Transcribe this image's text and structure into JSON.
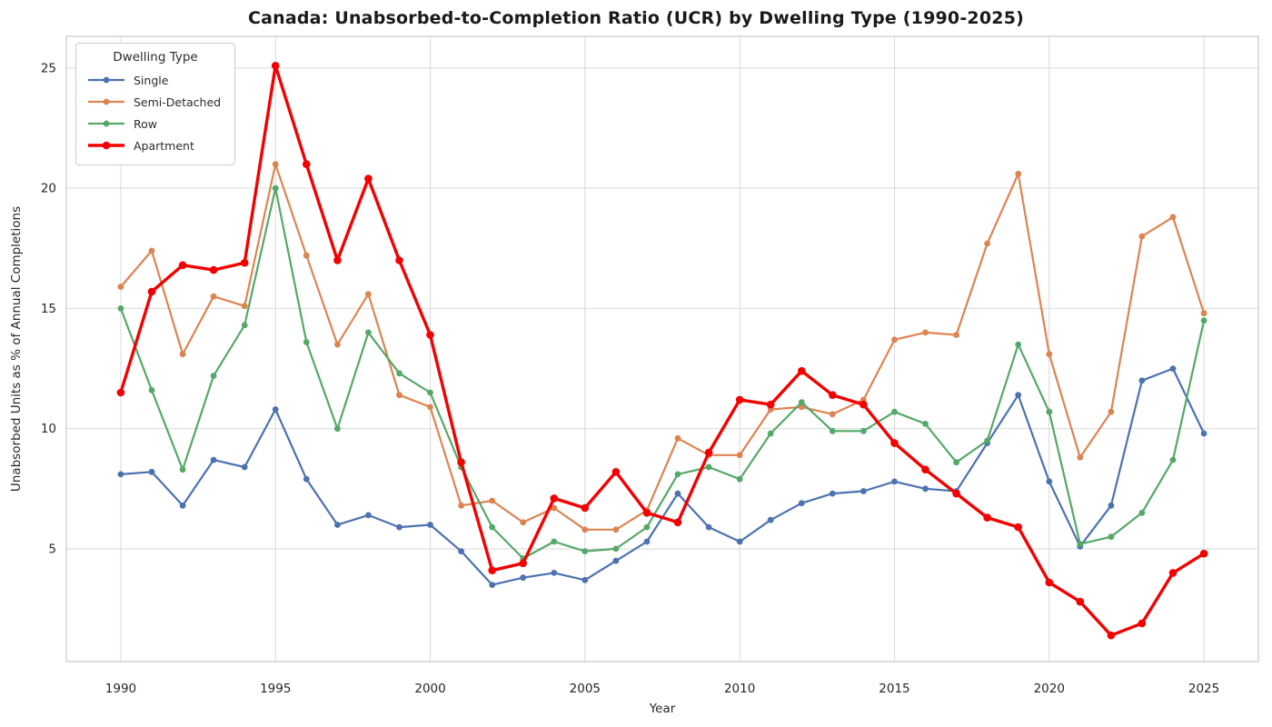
{
  "chart_data": {
    "type": "line",
    "title": "Canada: Unabsorbed-to-Completion Ratio (UCR) by Dwelling Type (1990-2025)",
    "xlabel": "Year",
    "ylabel": "Unabsorbed Units as % of Annual Completions",
    "legend_title": "Dwelling Type",
    "legend_position": "upper left",
    "grid": true,
    "background": "#ffffff",
    "gridline_color": "#d9d9d9",
    "spine_color": "#cccccc",
    "tick_label_color": "#262626",
    "xlim": [
      1988.24,
      2026.76
    ],
    "ylim": [
      0.31,
      26.32
    ],
    "xticks": [
      1990,
      1995,
      2000,
      2005,
      2010,
      2015,
      2020,
      2025
    ],
    "yticks": [
      5,
      10,
      15,
      20,
      25
    ],
    "x": [
      1990,
      1991,
      1992,
      1993,
      1994,
      1995,
      1996,
      1997,
      1998,
      1999,
      2000,
      2001,
      2002,
      2003,
      2004,
      2005,
      2006,
      2007,
      2008,
      2009,
      2010,
      2011,
      2012,
      2013,
      2014,
      2015,
      2016,
      2017,
      2018,
      2019,
      2020,
      2021,
      2022,
      2023,
      2024,
      2025
    ],
    "series": [
      {
        "name": "Single",
        "color": "#4c72b0",
        "linewidth": 2.2,
        "markersize": 3.4,
        "values": [
          8.1,
          8.2,
          6.8,
          8.7,
          8.4,
          10.8,
          7.9,
          6.0,
          6.4,
          5.9,
          6.0,
          4.9,
          3.5,
          3.8,
          4.0,
          3.7,
          4.5,
          5.3,
          7.3,
          5.9,
          5.3,
          6.2,
          6.9,
          7.3,
          7.4,
          7.8,
          7.5,
          7.4,
          9.4,
          11.4,
          7.8,
          5.1,
          6.8,
          12.0,
          12.5,
          9.8
        ]
      },
      {
        "name": "Semi-Detached",
        "color": "#dd8452",
        "linewidth": 2.2,
        "markersize": 3.4,
        "values": [
          15.9,
          17.4,
          13.1,
          15.5,
          15.1,
          21.0,
          17.2,
          13.5,
          15.6,
          11.4,
          10.9,
          6.8,
          7.0,
          6.1,
          6.7,
          5.8,
          5.8,
          6.6,
          9.6,
          8.9,
          8.9,
          10.8,
          10.9,
          10.6,
          11.2,
          13.7,
          14.0,
          13.9,
          17.7,
          20.6,
          13.1,
          8.8,
          10.7,
          18.0,
          18.8,
          14.8
        ]
      },
      {
        "name": "Row",
        "color": "#55a868",
        "linewidth": 2.2,
        "markersize": 3.4,
        "values": [
          15.0,
          11.6,
          8.3,
          12.2,
          14.3,
          20.0,
          13.6,
          10.0,
          14.0,
          12.3,
          11.5,
          8.4,
          5.9,
          4.6,
          5.3,
          4.9,
          5.0,
          5.9,
          8.1,
          8.4,
          7.9,
          9.8,
          11.1,
          9.9,
          9.9,
          10.7,
          10.2,
          8.6,
          9.5,
          13.5,
          10.7,
          5.2,
          5.5,
          6.5,
          8.7,
          14.5
        ]
      },
      {
        "name": "Apartment",
        "color": "#f40000",
        "linewidth": 3.4,
        "markersize": 4.3,
        "values": [
          11.5,
          15.7,
          16.8,
          16.6,
          16.9,
          25.1,
          21.0,
          17.0,
          20.4,
          17.0,
          13.9,
          8.6,
          4.1,
          4.4,
          7.1,
          6.7,
          8.2,
          6.5,
          6.1,
          9.0,
          11.2,
          11.0,
          12.4,
          11.4,
          11.0,
          9.4,
          8.3,
          7.3,
          6.3,
          5.9,
          3.6,
          2.8,
          1.4,
          1.9,
          4.0,
          4.8
        ]
      }
    ]
  }
}
